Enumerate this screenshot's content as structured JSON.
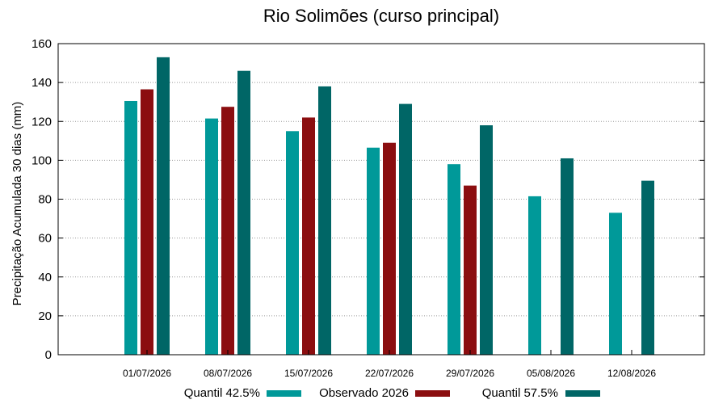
{
  "chart_data": {
    "type": "bar",
    "title": "Rio Solimões (curso principal)",
    "xlabel": "",
    "ylabel": "Precipitação Acumulada 30 dias (mm)",
    "ylim": [
      0,
      160
    ],
    "yticks": [
      0,
      20,
      40,
      60,
      80,
      100,
      120,
      140,
      160
    ],
    "grid": true,
    "legend_position": "bottom",
    "categories": [
      "01/07/2026",
      "08/07/2026",
      "15/07/2026",
      "22/07/2026",
      "29/07/2026",
      "05/08/2026",
      "12/08/2026"
    ],
    "series": [
      {
        "name": "Quantil 42.5%",
        "color": "#009999",
        "values": [
          130.5,
          121.5,
          115,
          106.5,
          98,
          81.5,
          73
        ]
      },
      {
        "name": "Observado 2026",
        "color": "#8b0e10",
        "values": [
          136.5,
          127.5,
          122,
          109,
          87,
          null,
          null
        ]
      },
      {
        "name": "Quantil 57.5%",
        "color": "#006666",
        "values": [
          153,
          146,
          138,
          129,
          118,
          101,
          89.5
        ]
      }
    ]
  }
}
